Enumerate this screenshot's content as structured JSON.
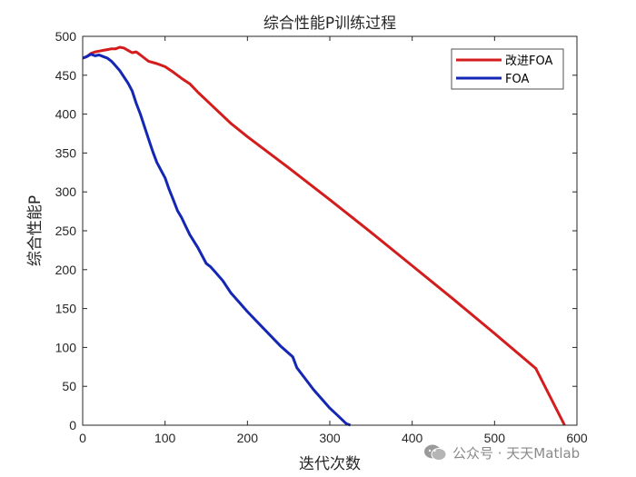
{
  "chart_data": {
    "type": "line",
    "title": "综合性能P训练过程",
    "xlabel": "迭代次数",
    "ylabel": "综合性能P",
    "xlim": [
      0,
      600
    ],
    "ylim": [
      0,
      500
    ],
    "xticks": [
      0,
      100,
      200,
      300,
      400,
      500,
      600
    ],
    "yticks": [
      0,
      50,
      100,
      150,
      200,
      250,
      300,
      350,
      400,
      450,
      500
    ],
    "grid": false,
    "legend": "top-right",
    "series": [
      {
        "name": "改进FOA",
        "color": "#d41c1c",
        "x": [
          0,
          5,
          10,
          15,
          20,
          25,
          30,
          35,
          40,
          45,
          50,
          55,
          60,
          65,
          70,
          75,
          80,
          90,
          100,
          110,
          120,
          130,
          140,
          150,
          160,
          180,
          200,
          250,
          300,
          350,
          400,
          450,
          500,
          550,
          585
        ],
        "y": [
          472,
          474,
          478,
          480,
          481,
          482,
          483,
          484,
          484,
          486,
          485,
          482,
          479,
          480,
          476,
          472,
          468,
          465,
          461,
          454,
          446,
          439,
          428,
          418,
          408,
          388,
          371,
          331,
          290,
          248,
          205,
          162,
          118,
          73,
          0
        ]
      },
      {
        "name": "FOA",
        "color": "#1426b4",
        "x": [
          0,
          5,
          10,
          15,
          20,
          25,
          30,
          35,
          40,
          45,
          50,
          55,
          60,
          65,
          70,
          75,
          80,
          85,
          90,
          95,
          100,
          105,
          110,
          115,
          120,
          125,
          130,
          140,
          150,
          155,
          160,
          170,
          180,
          190,
          200,
          220,
          240,
          255,
          260,
          270,
          280,
          290,
          300,
          310,
          320,
          325
        ],
        "y": [
          472,
          474,
          477,
          475,
          476,
          474,
          472,
          468,
          462,
          456,
          448,
          440,
          430,
          414,
          400,
          384,
          368,
          352,
          338,
          328,
          318,
          303,
          290,
          276,
          267,
          256,
          245,
          228,
          208,
          204,
          198,
          186,
          170,
          158,
          146,
          124,
          102,
          88,
          74,
          60,
          46,
          34,
          22,
          12,
          2,
          0
        ]
      }
    ]
  },
  "watermark": {
    "text": "公众号 · 天天Matlab"
  }
}
